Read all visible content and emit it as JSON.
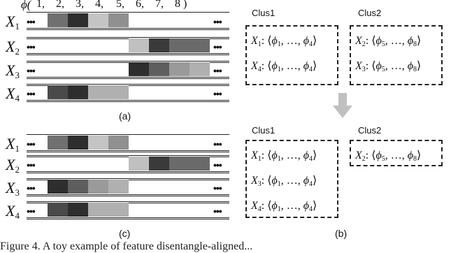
{
  "phi_header": {
    "symbol": "ϕ(",
    "numbers": [
      "1,",
      "2,",
      "3,",
      "4,",
      "5,",
      "6,",
      "7,",
      "8 )"
    ]
  },
  "ellipsis": "•••",
  "row_labels": [
    {
      "letter": "X",
      "sub": "1"
    },
    {
      "letter": "X",
      "sub": "2"
    },
    {
      "letter": "X",
      "sub": "3"
    },
    {
      "letter": "X",
      "sub": "4"
    }
  ],
  "panel_a": {
    "caption": "(a)",
    "rows": [
      [
        "#707070",
        "#2e2e2e",
        "#c4c4c4",
        "#909090",
        null,
        null,
        null,
        null
      ],
      [
        null,
        null,
        null,
        null,
        "#c0c0c0",
        "#3a3a3a",
        "#6a6a6a",
        "#6a6a6a"
      ],
      [
        null,
        null,
        null,
        null,
        "#2e2e2e",
        "#5e5e5e",
        "#9a9a9a",
        "#b0b0b0"
      ],
      [
        "#4a4a4a",
        "#2e2e2e",
        "#b0b0b0",
        "#b0b0b0",
        null,
        null,
        null,
        null
      ]
    ]
  },
  "panel_c": {
    "caption": "(c)",
    "rows": [
      [
        "#707070",
        "#2e2e2e",
        "#c4c4c4",
        "#909090",
        null,
        null,
        null,
        null
      ],
      [
        null,
        null,
        null,
        null,
        "#c0c0c0",
        "#3a3a3a",
        "#6a6a6a",
        "#6a6a6a"
      ],
      [
        "#2e2e2e",
        "#5e5e5e",
        "#9a9a9a",
        "#b0b0b0",
        null,
        null,
        null,
        null
      ],
      [
        "#4a4a4a",
        "#2e2e2e",
        "#b0b0b0",
        "#b0b0b0",
        null,
        null,
        null,
        null
      ]
    ]
  },
  "panel_b": {
    "caption": "(b)",
    "top": {
      "clus1": {
        "title": "Clus1",
        "lines": [
          {
            "x": "X",
            "sub": "1",
            "phi_a": "1",
            "phi_b": "4"
          },
          {
            "x": "X",
            "sub": "4",
            "phi_a": "1",
            "phi_b": "4"
          }
        ]
      },
      "clus2": {
        "title": "Clus2",
        "lines": [
          {
            "x": "X",
            "sub": "2",
            "phi_a": "5",
            "phi_b": "8"
          },
          {
            "x": "X",
            "sub": "3",
            "phi_a": "5",
            "phi_b": "8"
          }
        ]
      }
    },
    "bottom": {
      "clus1": {
        "title": "Clus1",
        "lines": [
          {
            "x": "X",
            "sub": "1",
            "phi_a": "1",
            "phi_b": "4"
          },
          {
            "x": "X",
            "sub": "3",
            "phi_a": "1",
            "phi_b": "4"
          },
          {
            "x": "X",
            "sub": "4",
            "phi_a": "1",
            "phi_b": "4"
          }
        ]
      },
      "clus2": {
        "title": "Clus2",
        "lines": [
          {
            "x": "X",
            "sub": "2",
            "phi_a": "5",
            "phi_b": "8"
          }
        ]
      }
    },
    "arrow_color": "#c0c0c0"
  },
  "bottom_caption": "Figure 4. A toy example of feature disentangle-aligned..."
}
